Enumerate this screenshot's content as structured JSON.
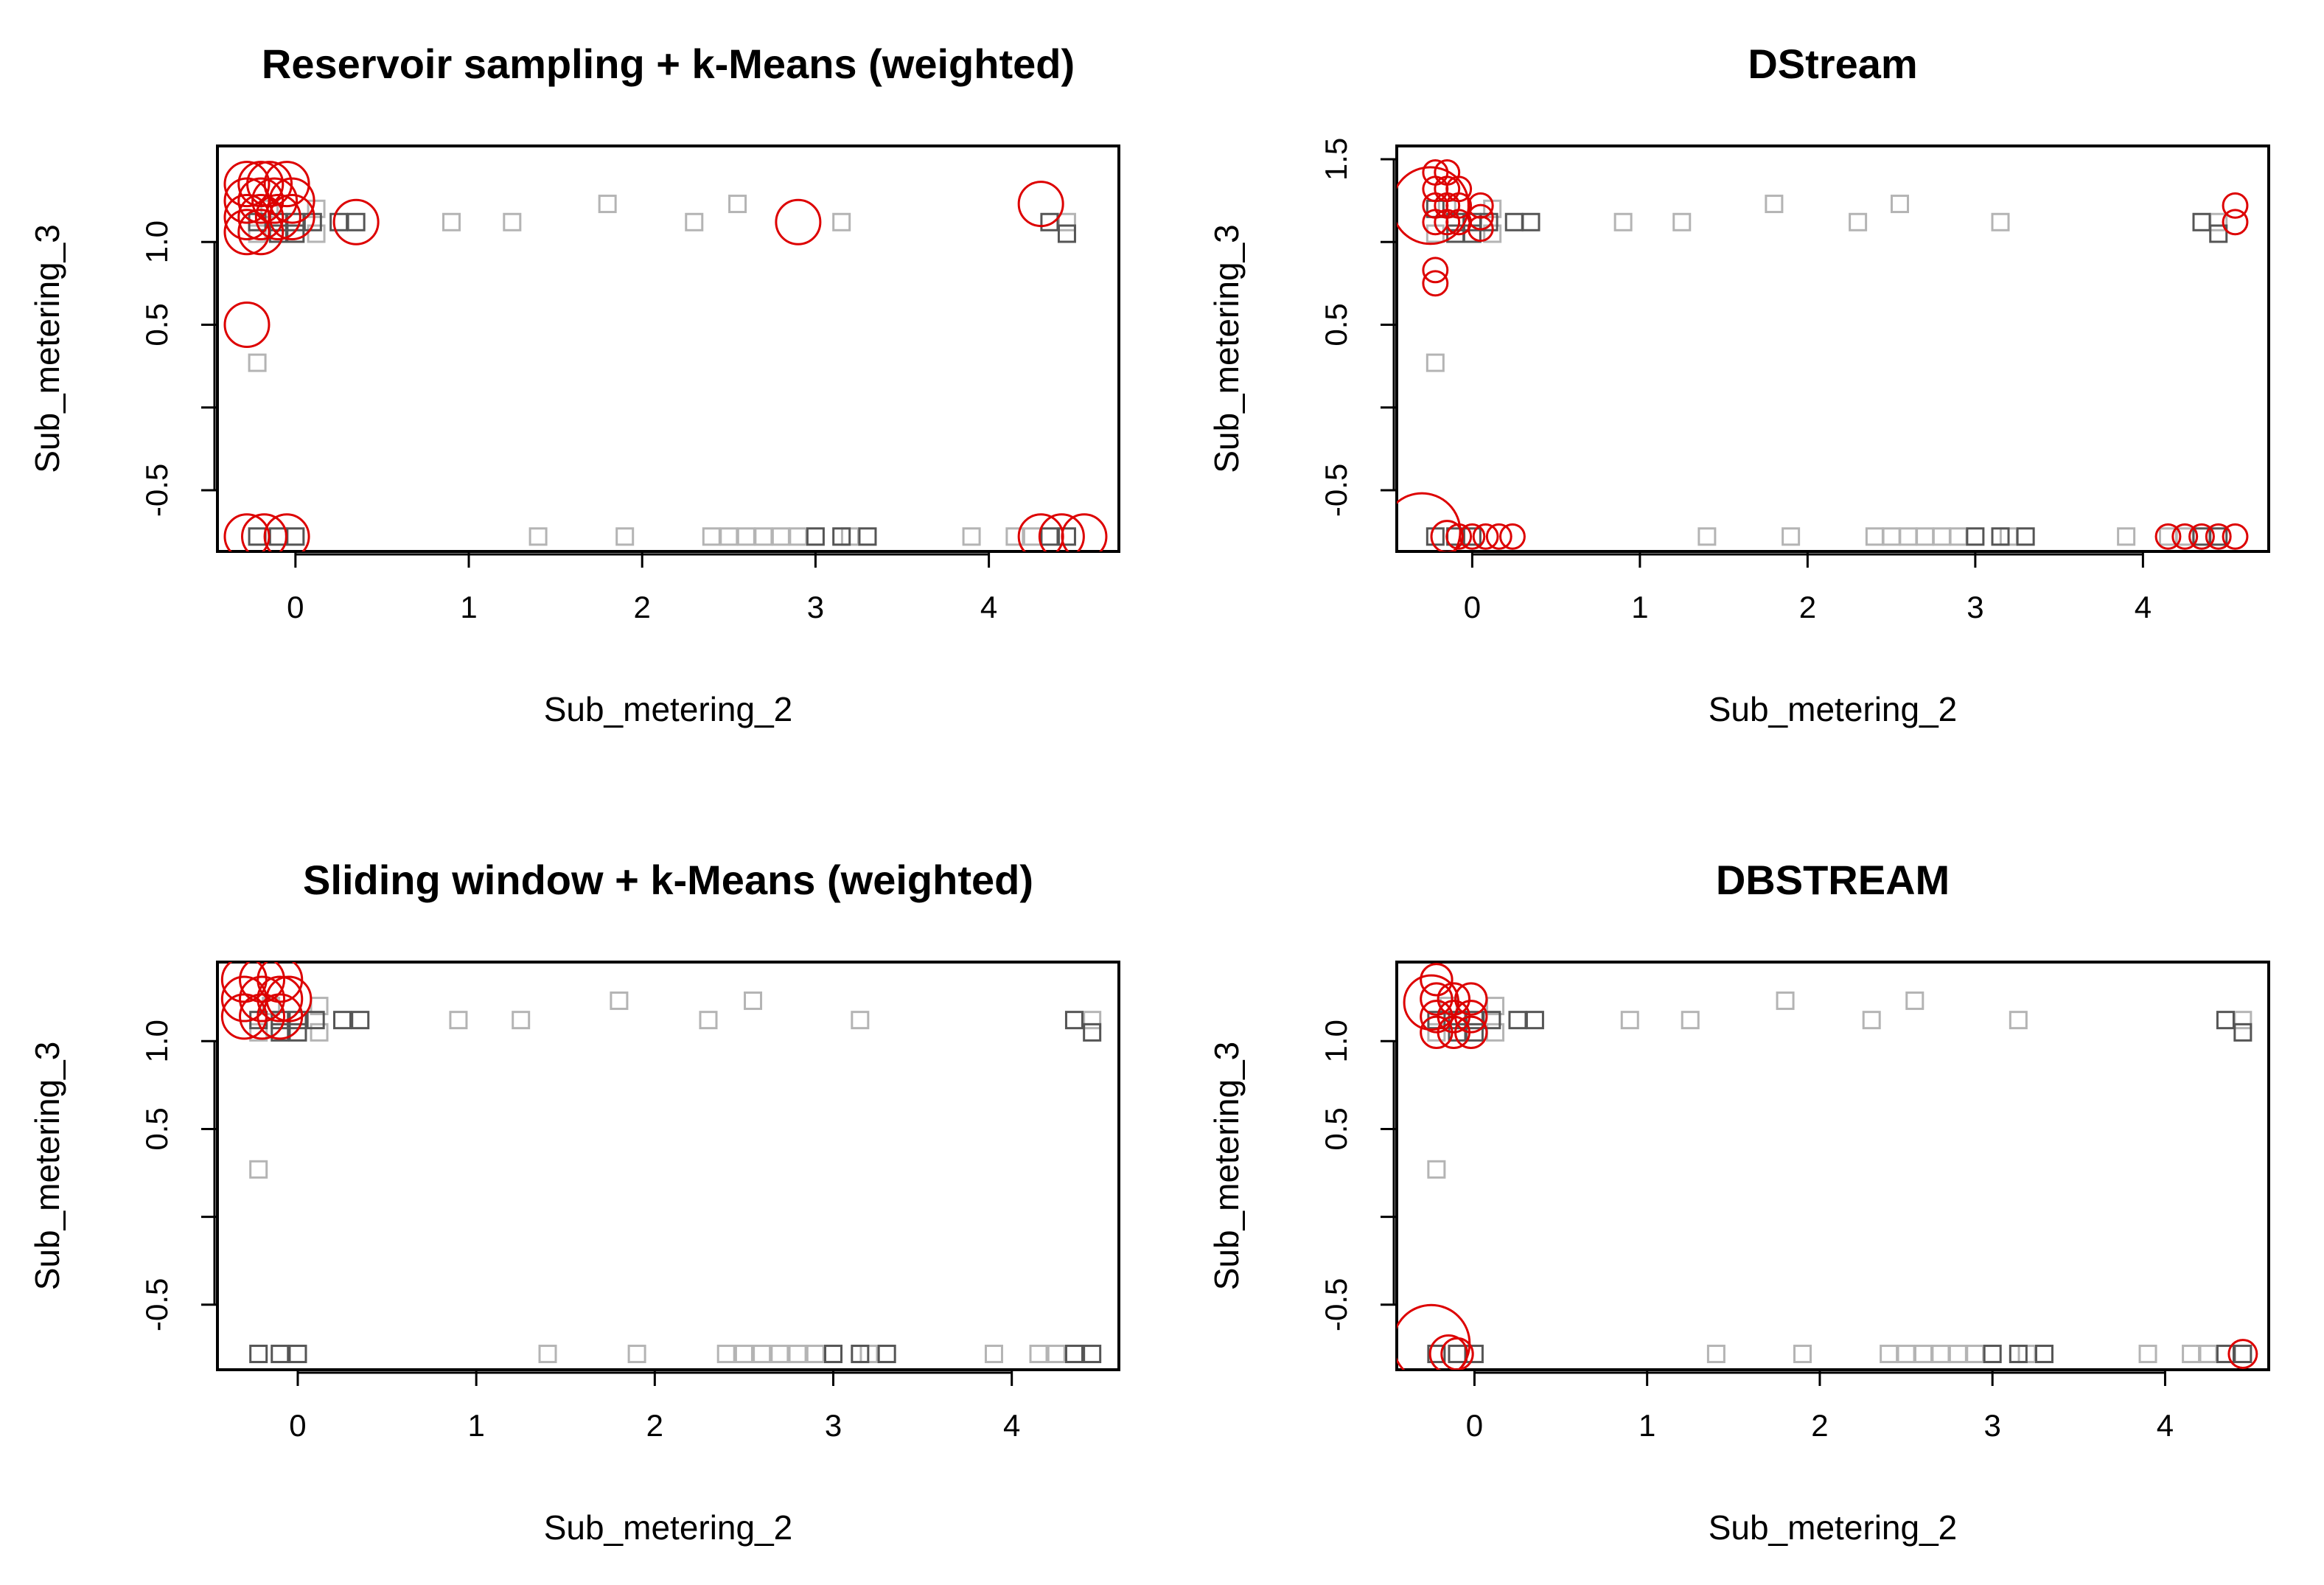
{
  "chart_data": [
    {
      "type": "scatter",
      "title": "Reservoir sampling + k-Means (weighted)",
      "xlabel": "Sub_metering_2",
      "ylabel": "Sub_metering_3",
      "xlim": [
        -0.45,
        4.75
      ],
      "ylim": [
        -0.87,
        1.58
      ],
      "xticks": [
        0,
        1,
        2,
        3,
        4
      ],
      "yticks": [
        -0.5,
        0.5,
        1.0
      ],
      "yticks_unlabeled": [
        0.0
      ],
      "data_points": {
        "dark": [
          [
            -0.22,
            1.12
          ],
          [
            -0.1,
            1.12
          ],
          [
            0,
            1.12
          ],
          [
            0.1,
            1.12
          ],
          [
            0.25,
            1.12
          ],
          [
            0.35,
            1.12
          ],
          [
            -0.1,
            1.05
          ],
          [
            0,
            1.05
          ],
          [
            -0.22,
            -0.78
          ],
          [
            -0.1,
            -0.78
          ],
          [
            0,
            -0.78
          ],
          [
            3.0,
            -0.78
          ],
          [
            3.15,
            -0.78
          ],
          [
            3.3,
            -0.78
          ],
          [
            4.35,
            -0.78
          ],
          [
            4.45,
            -0.78
          ],
          [
            4.35,
            1.12
          ],
          [
            4.45,
            1.05
          ]
        ],
        "light": [
          [
            -0.22,
            1.05
          ],
          [
            -0.15,
            1.2
          ],
          [
            0.12,
            1.05
          ],
          [
            0.12,
            1.2
          ],
          [
            0.9,
            1.12
          ],
          [
            1.25,
            1.12
          ],
          [
            1.8,
            1.23
          ],
          [
            2.3,
            1.12
          ],
          [
            2.55,
            1.23
          ],
          [
            3.15,
            1.12
          ],
          [
            -0.22,
            0.27
          ],
          [
            1.4,
            -0.78
          ],
          [
            1.9,
            -0.78
          ],
          [
            2.4,
            -0.78
          ],
          [
            2.5,
            -0.78
          ],
          [
            2.6,
            -0.78
          ],
          [
            2.7,
            -0.78
          ],
          [
            2.8,
            -0.78
          ],
          [
            2.9,
            -0.78
          ],
          [
            3.2,
            -0.78
          ],
          [
            3.9,
            -0.78
          ],
          [
            4.15,
            -0.78
          ],
          [
            4.25,
            -0.78
          ],
          [
            4.45,
            1.12
          ]
        ]
      },
      "cluster_centers": {
        "x": [
          -0.28,
          -0.2,
          -0.15,
          -0.05,
          -0.28,
          -0.2,
          -0.12,
          -0.02,
          -0.28,
          -0.2,
          -0.1,
          -0.02,
          -0.28,
          -0.2,
          -0.28,
          0.35,
          2.9,
          4.3,
          -0.28,
          -0.18,
          -0.05,
          4.3,
          4.42,
          4.55
        ],
        "y": [
          1.35,
          1.35,
          1.35,
          1.35,
          1.25,
          1.25,
          1.25,
          1.25,
          1.15,
          1.15,
          1.15,
          1.15,
          1.06,
          1.06,
          0.5,
          1.12,
          1.12,
          1.23,
          -0.78,
          -0.78,
          -0.78,
          -0.78,
          -0.78,
          -0.78
        ],
        "weight": [
          1,
          1,
          1,
          1,
          1,
          1,
          1,
          1,
          1,
          1,
          1,
          1,
          1,
          1,
          1,
          1,
          1,
          1,
          1,
          1,
          1,
          1,
          1,
          1
        ]
      }
    },
    {
      "type": "scatter",
      "title": "DStream",
      "xlabel": "Sub_metering_2",
      "ylabel": "Sub_metering_3",
      "xlim": [
        -0.45,
        4.75
      ],
      "ylim": [
        -0.87,
        1.58
      ],
      "xticks": [
        0,
        1,
        2,
        3,
        4
      ],
      "yticks": [
        -0.5,
        0.5,
        1.5
      ],
      "yticks_unlabeled": [
        0.0,
        1.0
      ],
      "data_points": {
        "dark": [
          [
            -0.22,
            1.2
          ],
          [
            -0.1,
            1.12
          ],
          [
            0,
            1.12
          ],
          [
            0.1,
            1.12
          ],
          [
            0.25,
            1.12
          ],
          [
            0.35,
            1.12
          ],
          [
            -0.1,
            1.05
          ],
          [
            0,
            1.05
          ],
          [
            -0.22,
            -0.78
          ],
          [
            -0.1,
            -0.78
          ],
          [
            0,
            -0.78
          ],
          [
            3.0,
            -0.78
          ],
          [
            3.15,
            -0.78
          ],
          [
            3.3,
            -0.78
          ],
          [
            4.35,
            -0.78
          ],
          [
            4.45,
            -0.78
          ],
          [
            4.35,
            1.12
          ],
          [
            4.45,
            1.05
          ]
        ],
        "light": [
          [
            -0.22,
            1.05
          ],
          [
            -0.15,
            1.2
          ],
          [
            0.12,
            1.05
          ],
          [
            0.12,
            1.2
          ],
          [
            0.9,
            1.12
          ],
          [
            1.25,
            1.12
          ],
          [
            1.8,
            1.23
          ],
          [
            2.3,
            1.12
          ],
          [
            2.55,
            1.23
          ],
          [
            3.15,
            1.12
          ],
          [
            -0.22,
            0.27
          ],
          [
            1.4,
            -0.78
          ],
          [
            1.9,
            -0.78
          ],
          [
            2.4,
            -0.78
          ],
          [
            2.5,
            -0.78
          ],
          [
            2.6,
            -0.78
          ],
          [
            2.7,
            -0.78
          ],
          [
            2.8,
            -0.78
          ],
          [
            2.9,
            -0.78
          ],
          [
            3.2,
            -0.78
          ],
          [
            3.9,
            -0.78
          ],
          [
            4.15,
            -0.78
          ],
          [
            4.25,
            -0.78
          ],
          [
            4.45,
            1.12
          ]
        ]
      },
      "cluster_centers": {
        "x": [
          -0.25,
          -0.22,
          -0.15,
          -0.22,
          -0.15,
          -0.08,
          0.05,
          -0.22,
          -0.15,
          -0.08,
          0.05,
          -0.22,
          -0.15,
          -0.08,
          0.05,
          -0.22,
          -0.22,
          -0.3,
          -0.15,
          -0.08,
          0.0,
          0.08,
          0.16,
          0.24,
          4.15,
          4.25,
          4.35,
          4.45,
          4.55,
          4.55,
          4.55
        ],
        "y": [
          1.22,
          1.42,
          1.42,
          1.32,
          1.32,
          1.32,
          1.22,
          1.22,
          1.22,
          1.22,
          1.15,
          1.12,
          1.12,
          1.12,
          1.08,
          0.83,
          0.75,
          -0.75,
          -0.78,
          -0.78,
          -0.78,
          -0.78,
          -0.78,
          -0.78,
          -0.78,
          -0.78,
          -0.78,
          -0.78,
          -0.78,
          1.22,
          1.12
        ],
        "weight": [
          3,
          0.3,
          0.3,
          0.3,
          0.3,
          0.3,
          0.3,
          0.3,
          0.3,
          0.3,
          0.3,
          0.3,
          0.3,
          0.3,
          0.3,
          0.3,
          0.3,
          3,
          0.5,
          0.3,
          0.3,
          0.3,
          0.3,
          0.3,
          0.3,
          0.3,
          0.3,
          0.3,
          0.3,
          0.3,
          0.3
        ]
      }
    },
    {
      "type": "scatter",
      "title": "Sliding window + k-Means (weighted)",
      "xlabel": "Sub_metering_2",
      "ylabel": "Sub_metering_3",
      "xlim": [
        -0.45,
        4.6
      ],
      "ylim": [
        -0.87,
        1.45
      ],
      "xticks": [
        0,
        1,
        2,
        3,
        4
      ],
      "yticks": [
        -0.5,
        0.5,
        1.0
      ],
      "yticks_unlabeled": [
        0.0
      ],
      "data_points": {
        "dark": [
          [
            -0.22,
            1.12
          ],
          [
            -0.1,
            1.12
          ],
          [
            0,
            1.12
          ],
          [
            0.1,
            1.12
          ],
          [
            0.25,
            1.12
          ],
          [
            0.35,
            1.12
          ],
          [
            -0.1,
            1.05
          ],
          [
            0,
            1.05
          ],
          [
            -0.22,
            -0.78
          ],
          [
            -0.1,
            -0.78
          ],
          [
            0,
            -0.78
          ],
          [
            3.0,
            -0.78
          ],
          [
            3.15,
            -0.78
          ],
          [
            3.3,
            -0.78
          ],
          [
            4.35,
            -0.78
          ],
          [
            4.45,
            -0.78
          ],
          [
            4.35,
            1.12
          ],
          [
            4.45,
            1.05
          ]
        ],
        "light": [
          [
            -0.22,
            1.05
          ],
          [
            -0.15,
            1.2
          ],
          [
            0.12,
            1.05
          ],
          [
            0.12,
            1.2
          ],
          [
            0.9,
            1.12
          ],
          [
            1.25,
            1.12
          ],
          [
            1.8,
            1.23
          ],
          [
            2.3,
            1.12
          ],
          [
            2.55,
            1.23
          ],
          [
            3.15,
            1.12
          ],
          [
            -0.22,
            0.27
          ],
          [
            1.4,
            -0.78
          ],
          [
            1.9,
            -0.78
          ],
          [
            2.4,
            -0.78
          ],
          [
            2.5,
            -0.78
          ],
          [
            2.6,
            -0.78
          ],
          [
            2.7,
            -0.78
          ],
          [
            2.8,
            -0.78
          ],
          [
            2.9,
            -0.78
          ],
          [
            3.2,
            -0.78
          ],
          [
            3.9,
            -0.78
          ],
          [
            4.15,
            -0.78
          ],
          [
            4.25,
            -0.78
          ],
          [
            4.45,
            1.12
          ]
        ]
      },
      "cluster_centers": {
        "x": [
          -0.3,
          -0.2,
          -0.1,
          -0.3,
          -0.2,
          -0.1,
          -0.05,
          -0.3,
          -0.2,
          -0.1
        ],
        "y": [
          1.35,
          1.35,
          1.35,
          1.24,
          1.24,
          1.24,
          1.24,
          1.14,
          1.14,
          1.14
        ],
        "weight": [
          1,
          1,
          1,
          1,
          1,
          1,
          1,
          1,
          1,
          1
        ]
      }
    },
    {
      "type": "scatter",
      "title": "DBSTREAM",
      "xlabel": "Sub_metering_2",
      "ylabel": "Sub_metering_3",
      "xlim": [
        -0.45,
        4.6
      ],
      "ylim": [
        -0.87,
        1.45
      ],
      "xticks": [
        0,
        1,
        2,
        3,
        4
      ],
      "yticks": [
        -0.5,
        0.5,
        1.0
      ],
      "yticks_unlabeled": [
        0.0
      ],
      "data_points": {
        "dark": [
          [
            -0.22,
            1.12
          ],
          [
            -0.1,
            1.12
          ],
          [
            0,
            1.12
          ],
          [
            0.1,
            1.12
          ],
          [
            0.25,
            1.12
          ],
          [
            0.35,
            1.12
          ],
          [
            -0.1,
            1.05
          ],
          [
            0,
            1.05
          ],
          [
            -0.22,
            -0.78
          ],
          [
            -0.1,
            -0.78
          ],
          [
            0,
            -0.78
          ],
          [
            3.0,
            -0.78
          ],
          [
            3.15,
            -0.78
          ],
          [
            3.3,
            -0.78
          ],
          [
            4.35,
            -0.78
          ],
          [
            4.45,
            -0.78
          ],
          [
            4.35,
            1.12
          ],
          [
            4.45,
            1.05
          ]
        ],
        "light": [
          [
            -0.22,
            1.05
          ],
          [
            -0.15,
            1.2
          ],
          [
            0.12,
            1.05
          ],
          [
            0.12,
            1.2
          ],
          [
            0.9,
            1.12
          ],
          [
            1.25,
            1.12
          ],
          [
            1.8,
            1.23
          ],
          [
            2.3,
            1.12
          ],
          [
            2.55,
            1.23
          ],
          [
            3.15,
            1.12
          ],
          [
            -0.22,
            0.27
          ],
          [
            1.4,
            -0.78
          ],
          [
            1.9,
            -0.78
          ],
          [
            2.4,
            -0.78
          ],
          [
            2.5,
            -0.78
          ],
          [
            2.6,
            -0.78
          ],
          [
            2.7,
            -0.78
          ],
          [
            2.8,
            -0.78
          ],
          [
            2.9,
            -0.78
          ],
          [
            3.2,
            -0.78
          ],
          [
            3.9,
            -0.78
          ],
          [
            4.15,
            -0.78
          ],
          [
            4.25,
            -0.78
          ],
          [
            4.45,
            1.12
          ]
        ]
      },
      "cluster_centers": {
        "x": [
          -0.25,
          -0.22,
          -0.22,
          -0.12,
          -0.02,
          -0.22,
          -0.12,
          -0.02,
          -0.22,
          -0.12,
          -0.02,
          -0.25,
          -0.15,
          -0.1,
          4.45
        ],
        "y": [
          1.22,
          1.35,
          1.24,
          1.24,
          1.24,
          1.14,
          1.14,
          1.14,
          1.05,
          1.05,
          1.05,
          -0.72,
          -0.78,
          -0.78,
          -0.78
        ],
        "weight": [
          1.5,
          0.5,
          0.5,
          0.5,
          0.5,
          0.5,
          0.5,
          0.5,
          0.5,
          0.5,
          0.5,
          3,
          0.7,
          0.5,
          0.4
        ]
      }
    }
  ],
  "colors": {
    "cluster": "#dd0000",
    "point_dark": "#555555",
    "point_light": "#b4b4b4"
  }
}
